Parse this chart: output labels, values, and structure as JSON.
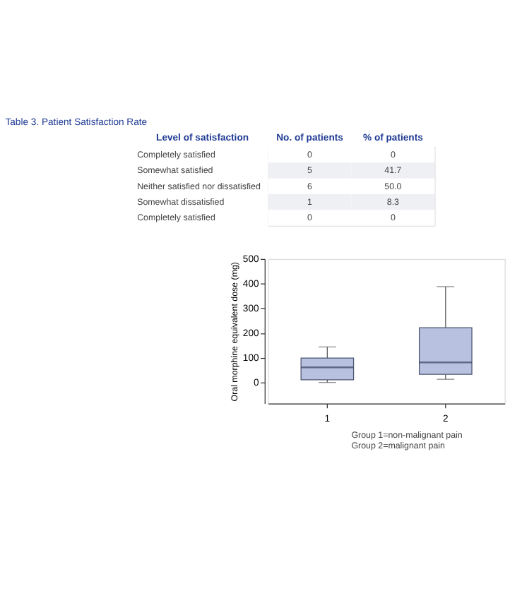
{
  "chart_data": [
    {
      "type": "heatmap",
      "title": "Table 3. Patient Satisfaction Rate",
      "ylabel": "Level of satisfaction",
      "categories": [
        "No. of patients",
        "% of patients"
      ],
      "y_categories": [
        "Completely satisfied",
        "Somewhat satisfied",
        "Neither satisfied nor dissatisfied",
        "Somewhat dissatisfied",
        "Completely satisfied"
      ],
      "cells": [
        [
          0,
          0
        ],
        [
          5,
          41.7
        ],
        [
          6,
          50.0
        ],
        [
          1,
          8.3
        ],
        [
          0,
          0
        ]
      ],
      "cell_labels": [
        [
          "0",
          "0"
        ],
        [
          "5",
          "41.7"
        ],
        [
          "6",
          "50.0"
        ],
        [
          "1",
          "8.3"
        ],
        [
          "0",
          "0"
        ]
      ],
      "data_labels": true
    },
    {
      "type": "box",
      "ylabel": "Oral morphine equivalent dose (mg)",
      "categories": [
        "1",
        "2"
      ],
      "color": "#b8c2e0",
      "boxes": [
        {
          "low": 0,
          "q1": 11,
          "median": 61,
          "q3": 99,
          "high": 144
        },
        {
          "low": 13,
          "q1": 33,
          "median": 81,
          "q3": 222,
          "high": 388
        }
      ],
      "ylim": [
        -85,
        500
      ],
      "yticks": [
        0,
        100,
        200,
        300,
        400,
        500
      ],
      "grid": false,
      "annotations": [
        "Group 1=non-malignant pain",
        "Group 2=malignant pain"
      ]
    }
  ]
}
